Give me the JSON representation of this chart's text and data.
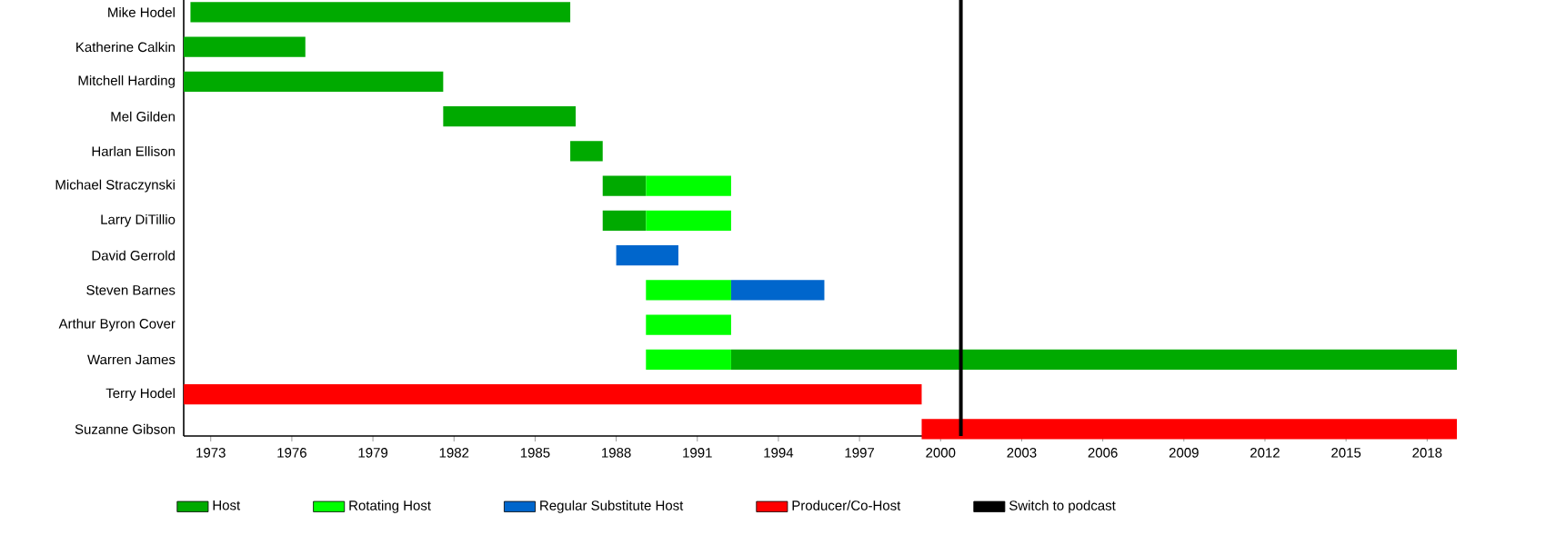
{
  "chart_data": {
    "type": "bar",
    "orientation": "horizontal",
    "legend": "bottom",
    "categories": [
      "Mike Hodel",
      "Katherine Calkin",
      "Mitchell Harding",
      "Mel Gilden",
      "Harlan Ellison",
      "Michael Straczynski",
      "Larry DiTillio",
      "David Gerrold",
      "Steven Barnes",
      "Arthur Byron Cover",
      "Warren James",
      "Terry Hodel",
      "Suzanne Gibson"
    ],
    "series": [
      {
        "name": "Host",
        "color": "#00aa00",
        "base": [
          1972.25,
          1972,
          1972,
          1981.6,
          1986.3,
          1987.5,
          1987.5,
          null,
          null,
          null,
          1992.25,
          null,
          null
        ],
        "values": [
          14.05,
          4.5,
          9.6,
          4.9,
          1.2,
          1.6,
          1.6,
          null,
          null,
          null,
          26.85,
          null,
          null
        ]
      },
      {
        "name": "Rotating Host",
        "color": "#00ff00",
        "base": [
          null,
          null,
          null,
          null,
          null,
          1989.1,
          1989.1,
          null,
          1989.1,
          1989.1,
          1989.1,
          null,
          null
        ],
        "values": [
          null,
          null,
          null,
          null,
          null,
          3.15,
          3.15,
          null,
          3.15,
          3.15,
          3.15,
          null,
          null
        ]
      },
      {
        "name": "Regular Substitute Host",
        "color": "#0066cc",
        "base": [
          null,
          null,
          null,
          null,
          null,
          null,
          null,
          1988,
          1992.25,
          null,
          null,
          null,
          null
        ],
        "values": [
          null,
          null,
          null,
          null,
          null,
          null,
          null,
          2.3,
          3.45,
          null,
          null,
          null,
          null
        ]
      },
      {
        "name": "Producer/Co-Host",
        "color": "#ff0000",
        "base": [
          null,
          null,
          null,
          null,
          null,
          null,
          null,
          null,
          null,
          null,
          null,
          1972,
          1999.3
        ],
        "values": [
          null,
          null,
          null,
          null,
          null,
          null,
          null,
          null,
          null,
          null,
          null,
          27.3,
          19.8
        ]
      }
    ],
    "ref_lines": [
      {
        "axis": "x",
        "value": 2000.75,
        "label": "Switch to podcast",
        "color": "#000000"
      }
    ],
    "xlim": [
      1972,
      2019.1
    ],
    "xticks": [
      1973,
      1976,
      1979,
      1982,
      1985,
      1988,
      1991,
      1994,
      1997,
      2000,
      2003,
      2006,
      2009,
      2012,
      2015,
      2018
    ]
  }
}
